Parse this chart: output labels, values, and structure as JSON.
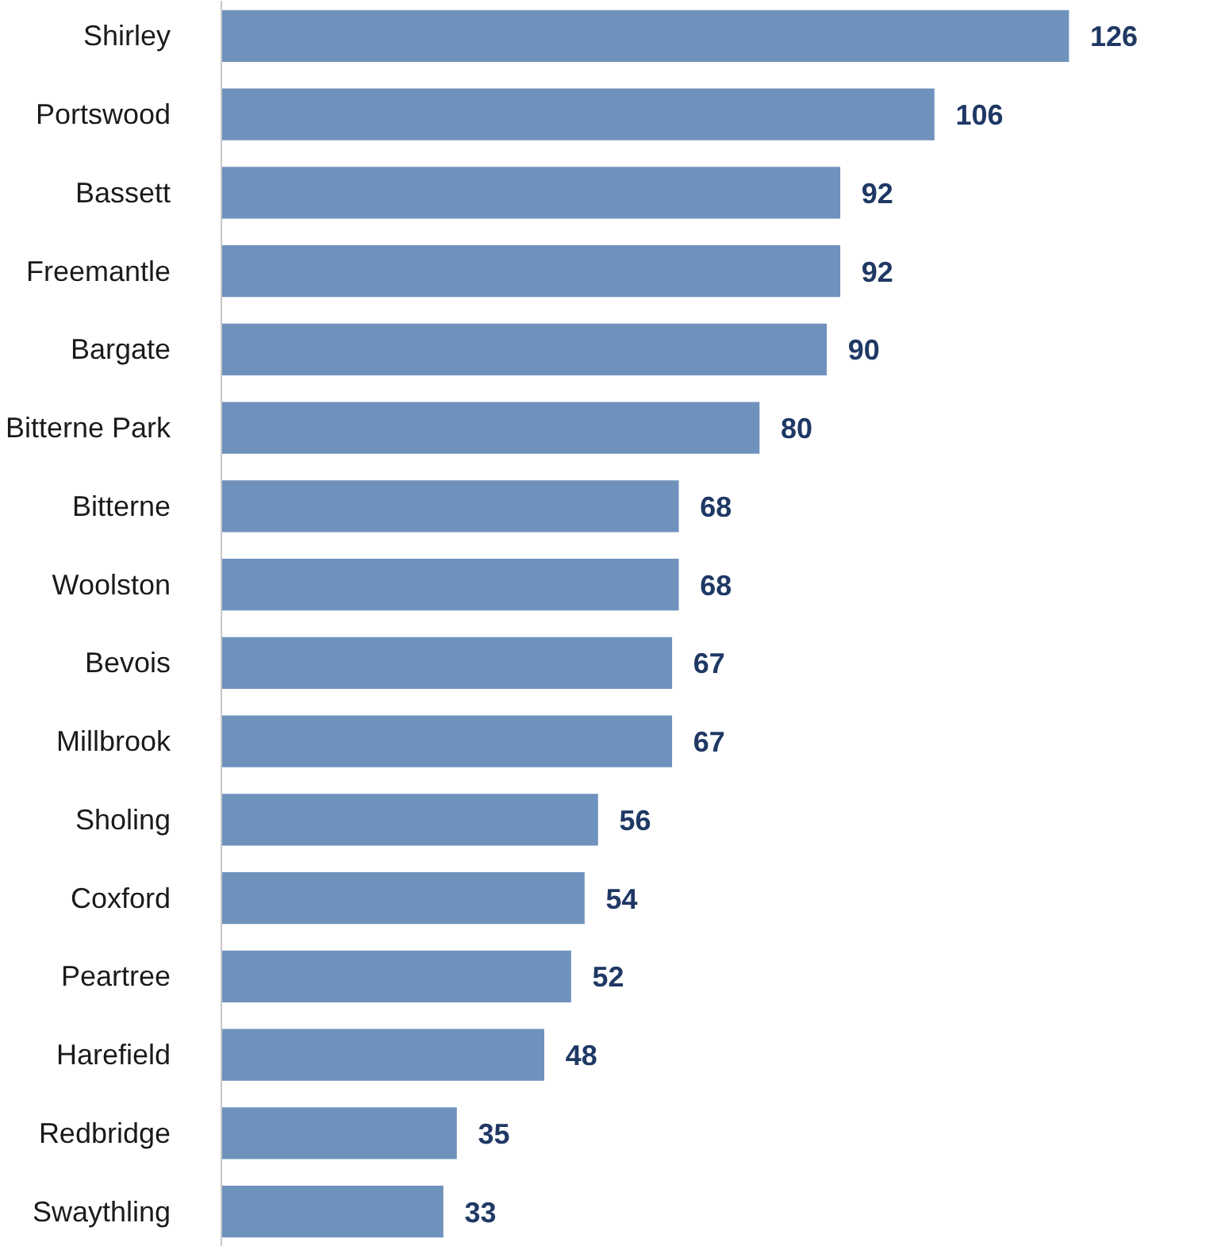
{
  "chart_data": {
    "type": "bar",
    "orientation": "horizontal",
    "categories": [
      "Shirley",
      "Portswood",
      "Bassett",
      "Freemantle",
      "Bargate",
      "Bitterne Park",
      "Bitterne",
      "Woolston",
      "Bevois",
      "Millbrook",
      "Sholing",
      "Coxford",
      "Peartree",
      "Harefield",
      "Redbridge",
      "Swaythling"
    ],
    "values": [
      126,
      106,
      92,
      92,
      90,
      80,
      68,
      68,
      67,
      67,
      56,
      54,
      52,
      48,
      35,
      33
    ],
    "color": "#6f92bd",
    "data_labels": true
  }
}
